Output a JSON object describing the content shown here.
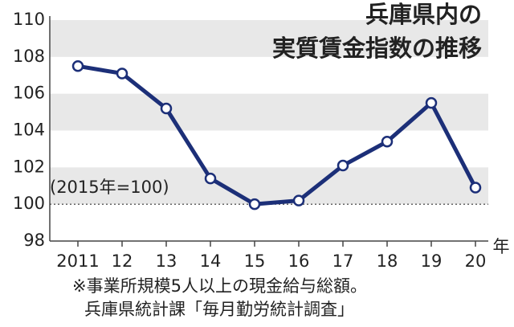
{
  "chart_data": {
    "type": "line",
    "title": [
      "兵庫県内の",
      "実質賃金指数の推移"
    ],
    "annotation": "(2015年=100)",
    "x_unit": "年",
    "notes": [
      "※事業所規模5人以上の現金給与総額。",
      "兵庫県統計課「毎月勤労統計調査」"
    ],
    "categories": [
      "2011",
      "12",
      "13",
      "14",
      "15",
      "16",
      "17",
      "18",
      "19",
      "20"
    ],
    "series": [
      {
        "color": "#1c2f78",
        "values": [
          107.5,
          107.1,
          105.2,
          101.4,
          100.0,
          100.2,
          102.1,
          103.4,
          105.5,
          100.9
        ]
      }
    ],
    "ylim": [
      98,
      110
    ],
    "yticks": [
      98,
      100,
      102,
      104,
      106,
      108,
      110
    ],
    "baseline": 100,
    "band_color": "#e8e8e8"
  }
}
